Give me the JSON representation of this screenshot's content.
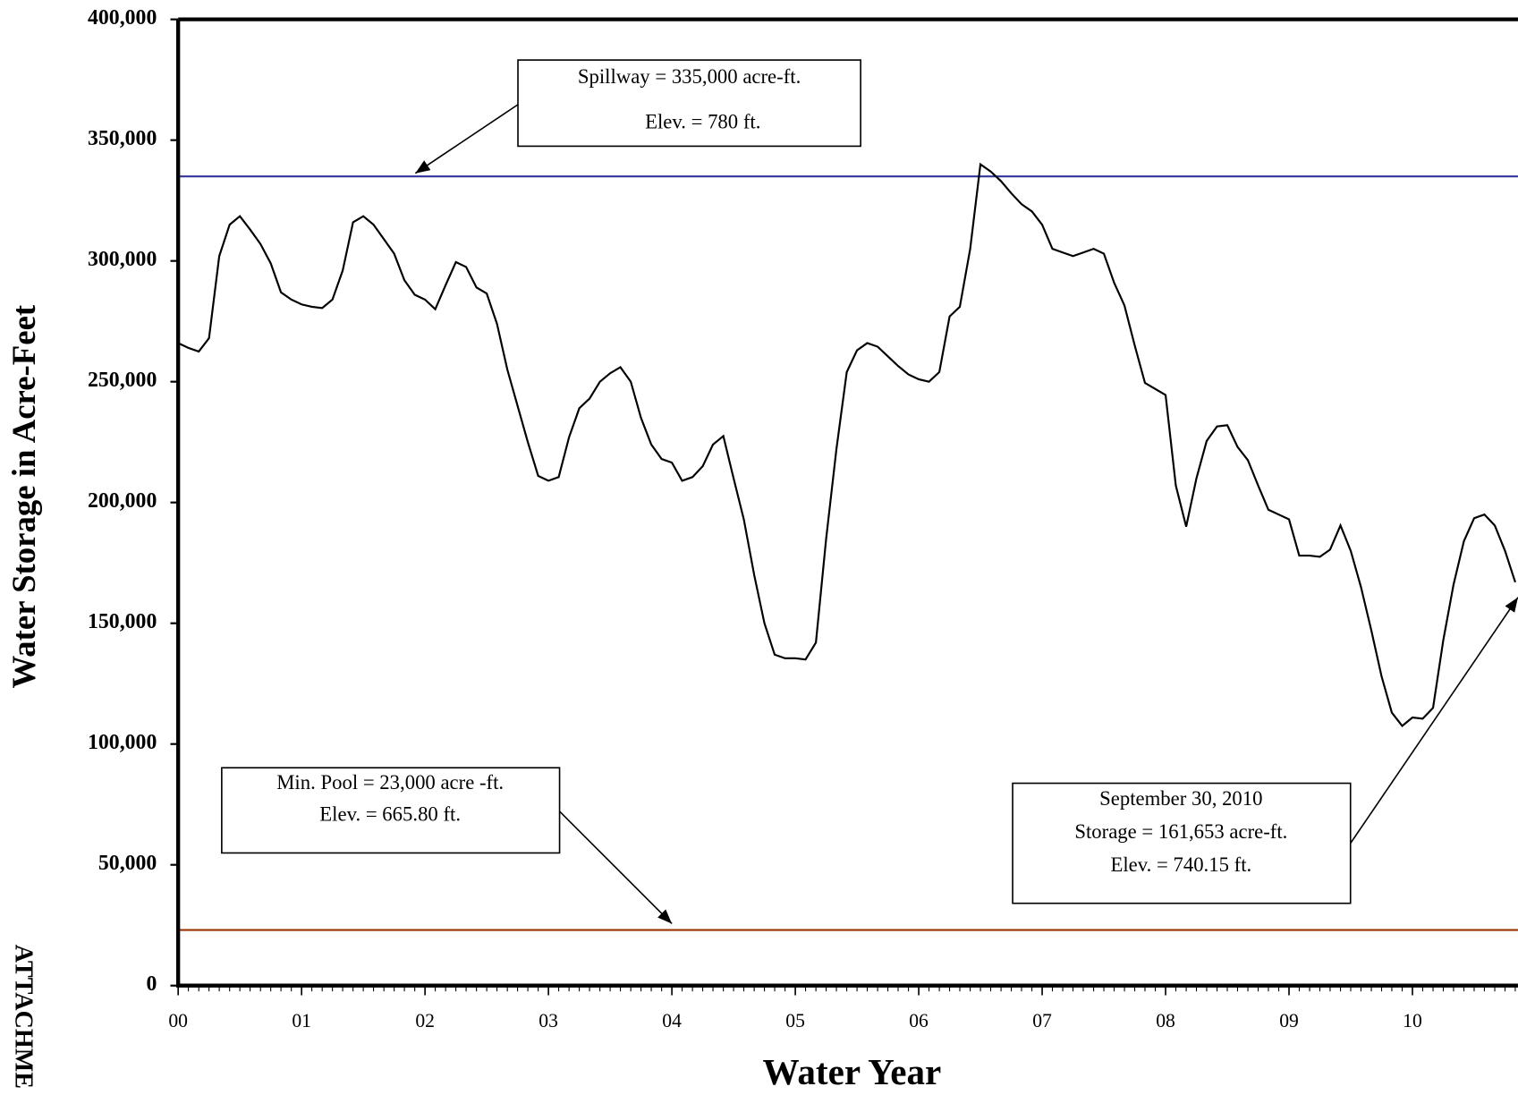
{
  "page": {
    "side_text": "ATTACHME"
  },
  "chart_data": {
    "type": "line",
    "x_label": "Water Year",
    "y_label": "Water Storage in Acre-Feet",
    "color": "#000000",
    "x": [
      0,
      0.083,
      0.167,
      0.25,
      0.333,
      0.417,
      0.5,
      0.583,
      0.667,
      0.75,
      0.833,
      0.917,
      1,
      1.083,
      1.167,
      1.25,
      1.333,
      1.417,
      1.5,
      1.583,
      1.667,
      1.75,
      1.833,
      1.917,
      2,
      2.083,
      2.167,
      2.25,
      2.333,
      2.417,
      2.5,
      2.583,
      2.667,
      2.75,
      2.833,
      2.917,
      3,
      3.083,
      3.167,
      3.25,
      3.333,
      3.417,
      3.5,
      3.583,
      3.667,
      3.75,
      3.833,
      3.917,
      4,
      4.083,
      4.167,
      4.25,
      4.333,
      4.417,
      4.5,
      4.583,
      4.667,
      4.75,
      4.833,
      4.917,
      5,
      5.083,
      5.167,
      5.25,
      5.333,
      5.417,
      5.5,
      5.583,
      5.667,
      5.75,
      5.833,
      5.917,
      6,
      6.083,
      6.167,
      6.25,
      6.333,
      6.417,
      6.5,
      6.583,
      6.667,
      6.75,
      6.833,
      6.917,
      7,
      7.083,
      7.167,
      7.25,
      7.333,
      7.417,
      7.5,
      7.583,
      7.667,
      7.75,
      7.833,
      7.917,
      8,
      8.083,
      8.167,
      8.25,
      8.333,
      8.417,
      8.5,
      8.583,
      8.667,
      8.75,
      8.833,
      8.917,
      9,
      9.083,
      9.167,
      9.25,
      9.333,
      9.417,
      9.5,
      9.583,
      9.667,
      9.75,
      9.833,
      9.917,
      10,
      10.083,
      10.167,
      10.25,
      10.333,
      10.417,
      10.5,
      10.583,
      10.667,
      10.75,
      10.833
    ],
    "values": [
      266000,
      264000,
      262500,
      268000,
      302000,
      315000,
      318500,
      313000,
      307000,
      299000,
      287000,
      284000,
      282000,
      281000,
      280500,
      284000,
      296000,
      316000,
      318500,
      315000,
      309000,
      303000,
      292000,
      286000,
      284000,
      280000,
      290000,
      299500,
      297500,
      289000,
      286500,
      274000,
      255000,
      240000,
      225000,
      211000,
      209000,
      210500,
      227000,
      239000,
      243000,
      250000,
      253500,
      256000,
      250000,
      235000,
      224000,
      218000,
      216500,
      209000,
      210500,
      215000,
      224000,
      227500,
      210000,
      193000,
      170000,
      150000,
      137000,
      135500,
      135500,
      135000,
      142000,
      185000,
      222000,
      254000,
      263000,
      266000,
      264500,
      260500,
      256500,
      253000,
      251000,
      250000,
      254000,
      277000,
      281000,
      305000,
      340000,
      337000,
      333000,
      328000,
      323500,
      320500,
      315000,
      305000,
      303500,
      302000,
      303500,
      305000,
      303000,
      291000,
      281500,
      265000,
      249500,
      247000,
      244500,
      207000,
      190000,
      210000,
      225500,
      231500,
      232000,
      223000,
      217500,
      207000,
      197000,
      195000,
      193000,
      178000,
      178000,
      177500,
      180500,
      190500,
      180000,
      165000,
      147000,
      128000,
      113000,
      107500,
      111000,
      110500,
      115000,
      143000,
      166000,
      184000,
      193500,
      195000,
      190500,
      180000,
      167000
    ],
    "xlim": [
      0,
      10.855
    ],
    "xticks": [
      {
        "value": 0,
        "label": "00"
      },
      {
        "value": 1,
        "label": "01"
      },
      {
        "value": 2,
        "label": "02"
      },
      {
        "value": 3,
        "label": "03"
      },
      {
        "value": 4,
        "label": "04"
      },
      {
        "value": 5,
        "label": "05"
      },
      {
        "value": 6,
        "label": "06"
      },
      {
        "value": 7,
        "label": "07"
      },
      {
        "value": 8,
        "label": "08"
      },
      {
        "value": 9,
        "label": "09"
      },
      {
        "value": 10,
        "label": "10"
      }
    ],
    "ylim": [
      0,
      400000
    ],
    "yticks": [
      0,
      {
        "value": 50000,
        "label": "50,000"
      },
      {
        "value": 100000,
        "label": "100,000"
      },
      {
        "value": 150000,
        "label": "150,000"
      },
      {
        "value": 200000,
        "label": "200,000"
      },
      {
        "value": 250000,
        "label": "250,000"
      },
      {
        "value": 300000,
        "label": "300,000"
      },
      {
        "value": 350000,
        "label": "350,000"
      },
      {
        "value": 400000,
        "label": "400,000"
      }
    ],
    "reference_lines": [
      {
        "value": 335000,
        "color": "#333399"
      },
      {
        "value": 23000,
        "color": "#993300"
      }
    ],
    "annotations": [
      {
        "lines": [
          "Spillway = 335,000 acre-ft.",
          "Elev. = 780 ft."
        ]
      },
      {
        "lines": [
          "Min. Pool = 23,000 acre -ft.",
          "Elev. = 665.80 ft."
        ]
      },
      {
        "lines": [
          "September 30, 2010",
          "Storage = 161,653 acre-ft.",
          "Elev. = 740.15 ft."
        ]
      }
    ]
  }
}
